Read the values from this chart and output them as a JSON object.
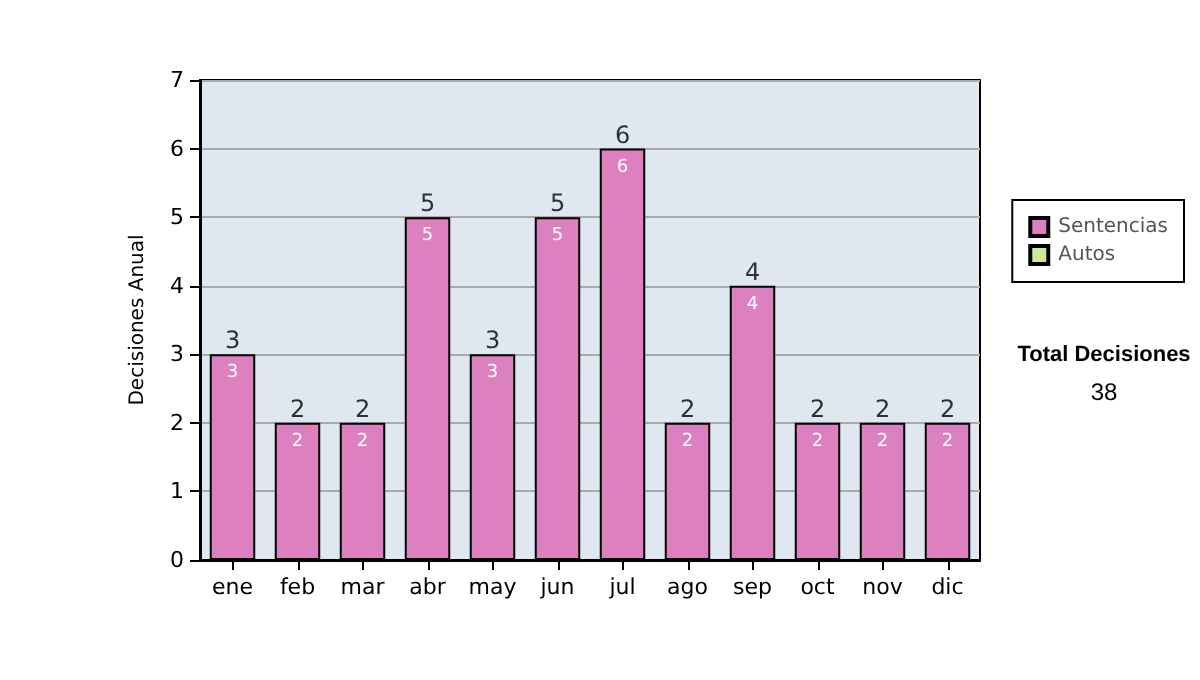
{
  "chart_data": {
    "type": "bar",
    "ylabel": "Decisiones Anual",
    "categories": [
      "ene",
      "feb",
      "mar",
      "abr",
      "may",
      "jun",
      "jul",
      "ago",
      "sep",
      "oct",
      "nov",
      "dic"
    ],
    "series": [
      {
        "name": "Sentencias",
        "color": "#dd80c0",
        "values": [
          3,
          2,
          2,
          5,
          3,
          5,
          6,
          2,
          4,
          2,
          2,
          2
        ],
        "value_labels": [
          "3",
          "2",
          "2",
          "5",
          "3",
          "5",
          "6",
          "2",
          "4",
          "2",
          "2",
          "2"
        ]
      },
      {
        "name": "Autos",
        "color": "#cce89a",
        "values": [
          null,
          null,
          null,
          null,
          null,
          null,
          null,
          null,
          null,
          null,
          null,
          null
        ]
      }
    ],
    "stacked": true,
    "totals": [
      "3",
      "2",
      "2",
      "5",
      "3",
      "5",
      "6",
      "2",
      "4",
      "2",
      "2",
      "2"
    ],
    "ylim": [
      0,
      7
    ],
    "yticks": [
      0,
      1,
      2,
      3,
      4,
      5,
      6,
      7
    ],
    "grid": "y",
    "legend": "right",
    "annotations": [
      "Total Decisiones",
      "38"
    ]
  }
}
